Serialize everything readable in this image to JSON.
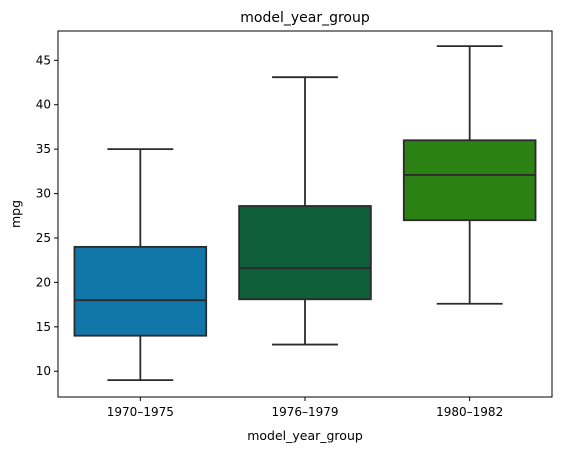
{
  "chart_data": {
    "type": "box",
    "title": "model_year_group",
    "xlabel": "model_year_group",
    "ylabel": "mpg",
    "ylim": [
      7.1,
      48.3
    ],
    "yticks": [
      10,
      15,
      20,
      25,
      30,
      35,
      40,
      45
    ],
    "grid": false,
    "categories": [
      "1970–1975",
      "1976–1979",
      "1980–1982"
    ],
    "boxes": [
      {
        "category": "1970–1975",
        "min": 9.0,
        "q1": 14.0,
        "median": 18.0,
        "q3": 24.0,
        "max": 35.0,
        "color": "#1176a8"
      },
      {
        "category": "1976–1979",
        "min": 13.0,
        "q1": 18.1,
        "median": 21.6,
        "q3": 28.6,
        "max": 43.1,
        "color": "#0f5e3a"
      },
      {
        "category": "1980–1982",
        "min": 17.6,
        "q1": 27.0,
        "median": 32.1,
        "q3": 36.0,
        "max": 46.6,
        "color": "#2b8114"
      }
    ]
  }
}
